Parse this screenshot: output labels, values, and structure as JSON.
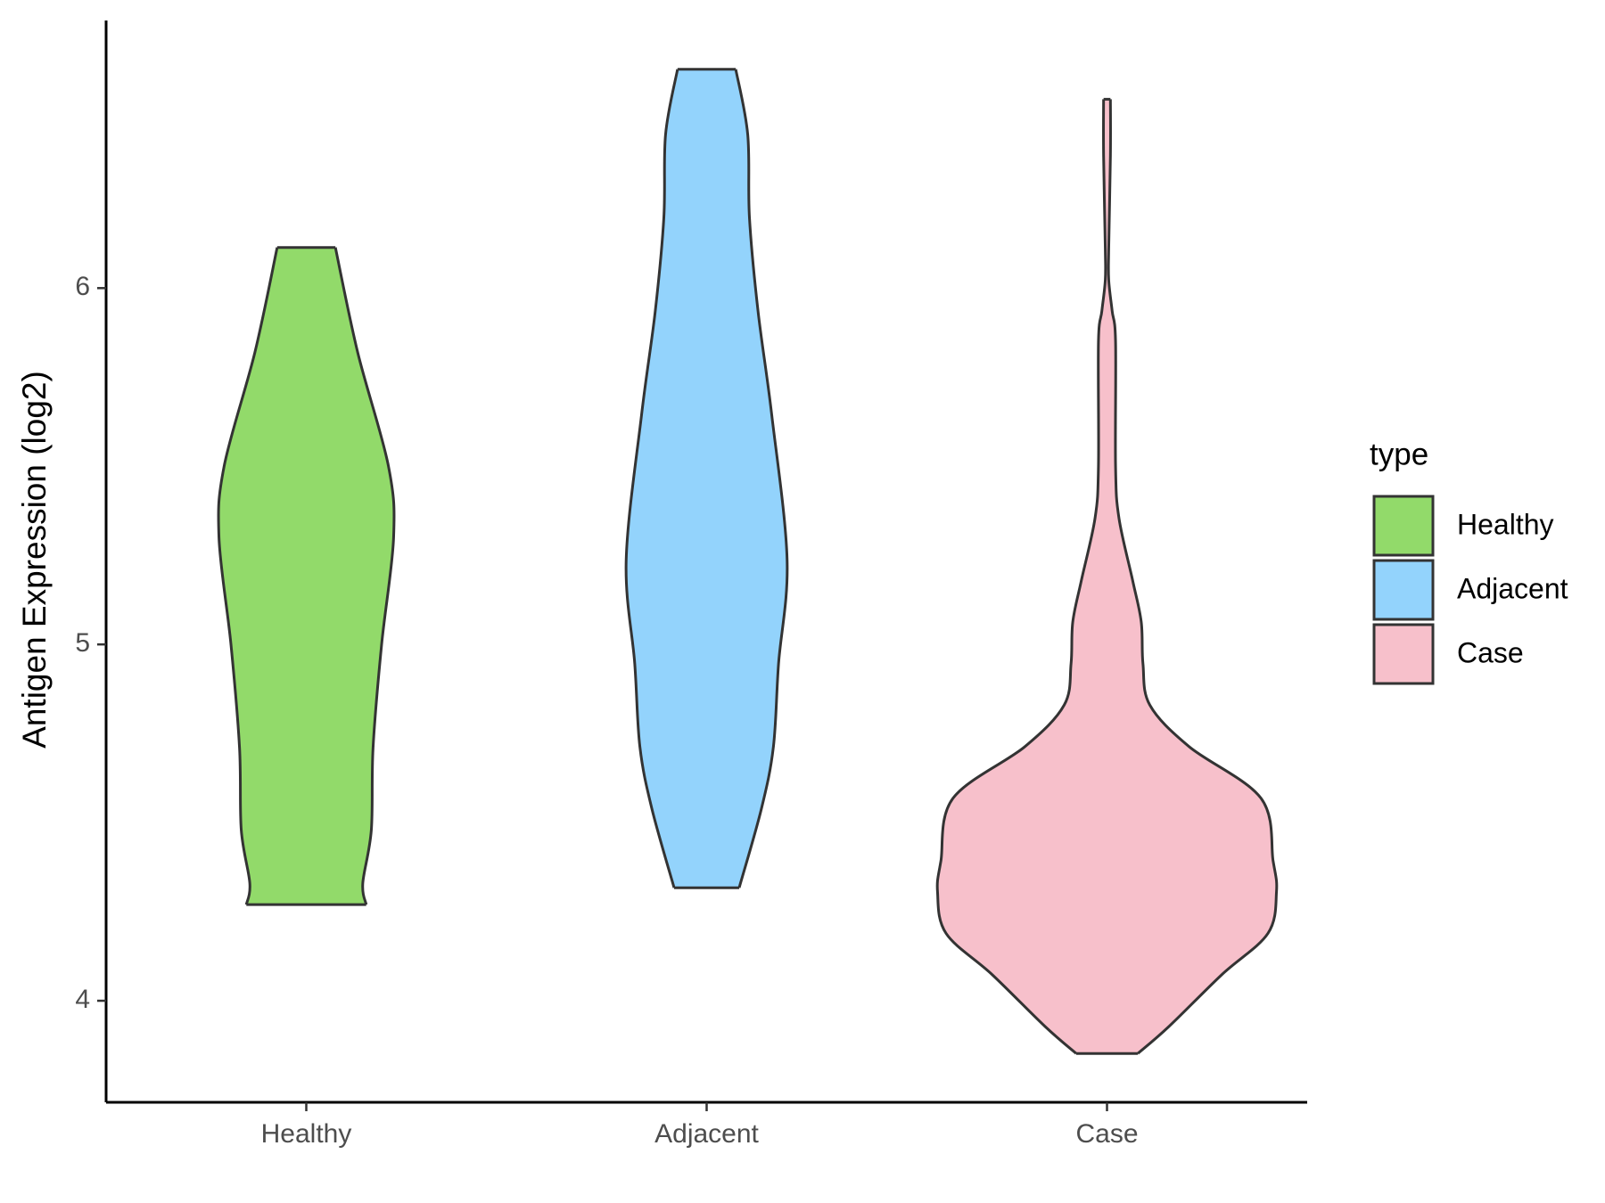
{
  "chart_data": {
    "type": "violin",
    "y_label": "Antigen Expression (log2)",
    "legend_title": "type",
    "categories": [
      "Healthy",
      "Adjacent",
      "Case"
    ],
    "ylim": [
      3.715,
      6.751
    ],
    "yticks": [
      4,
      5,
      6
    ],
    "series": [
      {
        "name": "Healthy",
        "color": "#92da6a",
        "y": [
          6.114,
          5.82,
          5.5,
          5.3,
          5.0,
          4.71,
          4.48,
          4.33,
          4.27
        ],
        "width": [
          0.17,
          0.3,
          0.48,
          0.51,
          0.44,
          0.39,
          0.38,
          0.33,
          0.35
        ]
      },
      {
        "name": "Adjacent",
        "color": "#93d3fc",
        "y": [
          6.614,
          6.431,
          6.198,
          5.936,
          5.645,
          5.237,
          4.946,
          4.713,
          4.539,
          4.317
        ],
        "width": [
          0.17,
          0.24,
          0.25,
          0.3,
          0.38,
          0.47,
          0.42,
          0.39,
          0.32,
          0.19
        ]
      },
      {
        "name": "Case",
        "color": "#f7c0cb",
        "y": [
          6.53,
          6.373,
          6.111,
          6.023,
          5.936,
          5.849,
          5.499,
          5.354,
          5.179,
          5.063,
          4.946,
          4.83,
          4.713,
          4.568,
          4.393,
          4.306,
          4.189,
          4.073,
          3.927,
          3.852
        ],
        "width": [
          0.02,
          0.02,
          0.01,
          0.01,
          0.03,
          0.05,
          0.05,
          0.07,
          0.15,
          0.2,
          0.21,
          0.25,
          0.48,
          0.9,
          0.97,
          0.99,
          0.94,
          0.67,
          0.36,
          0.18
        ]
      }
    ]
  }
}
